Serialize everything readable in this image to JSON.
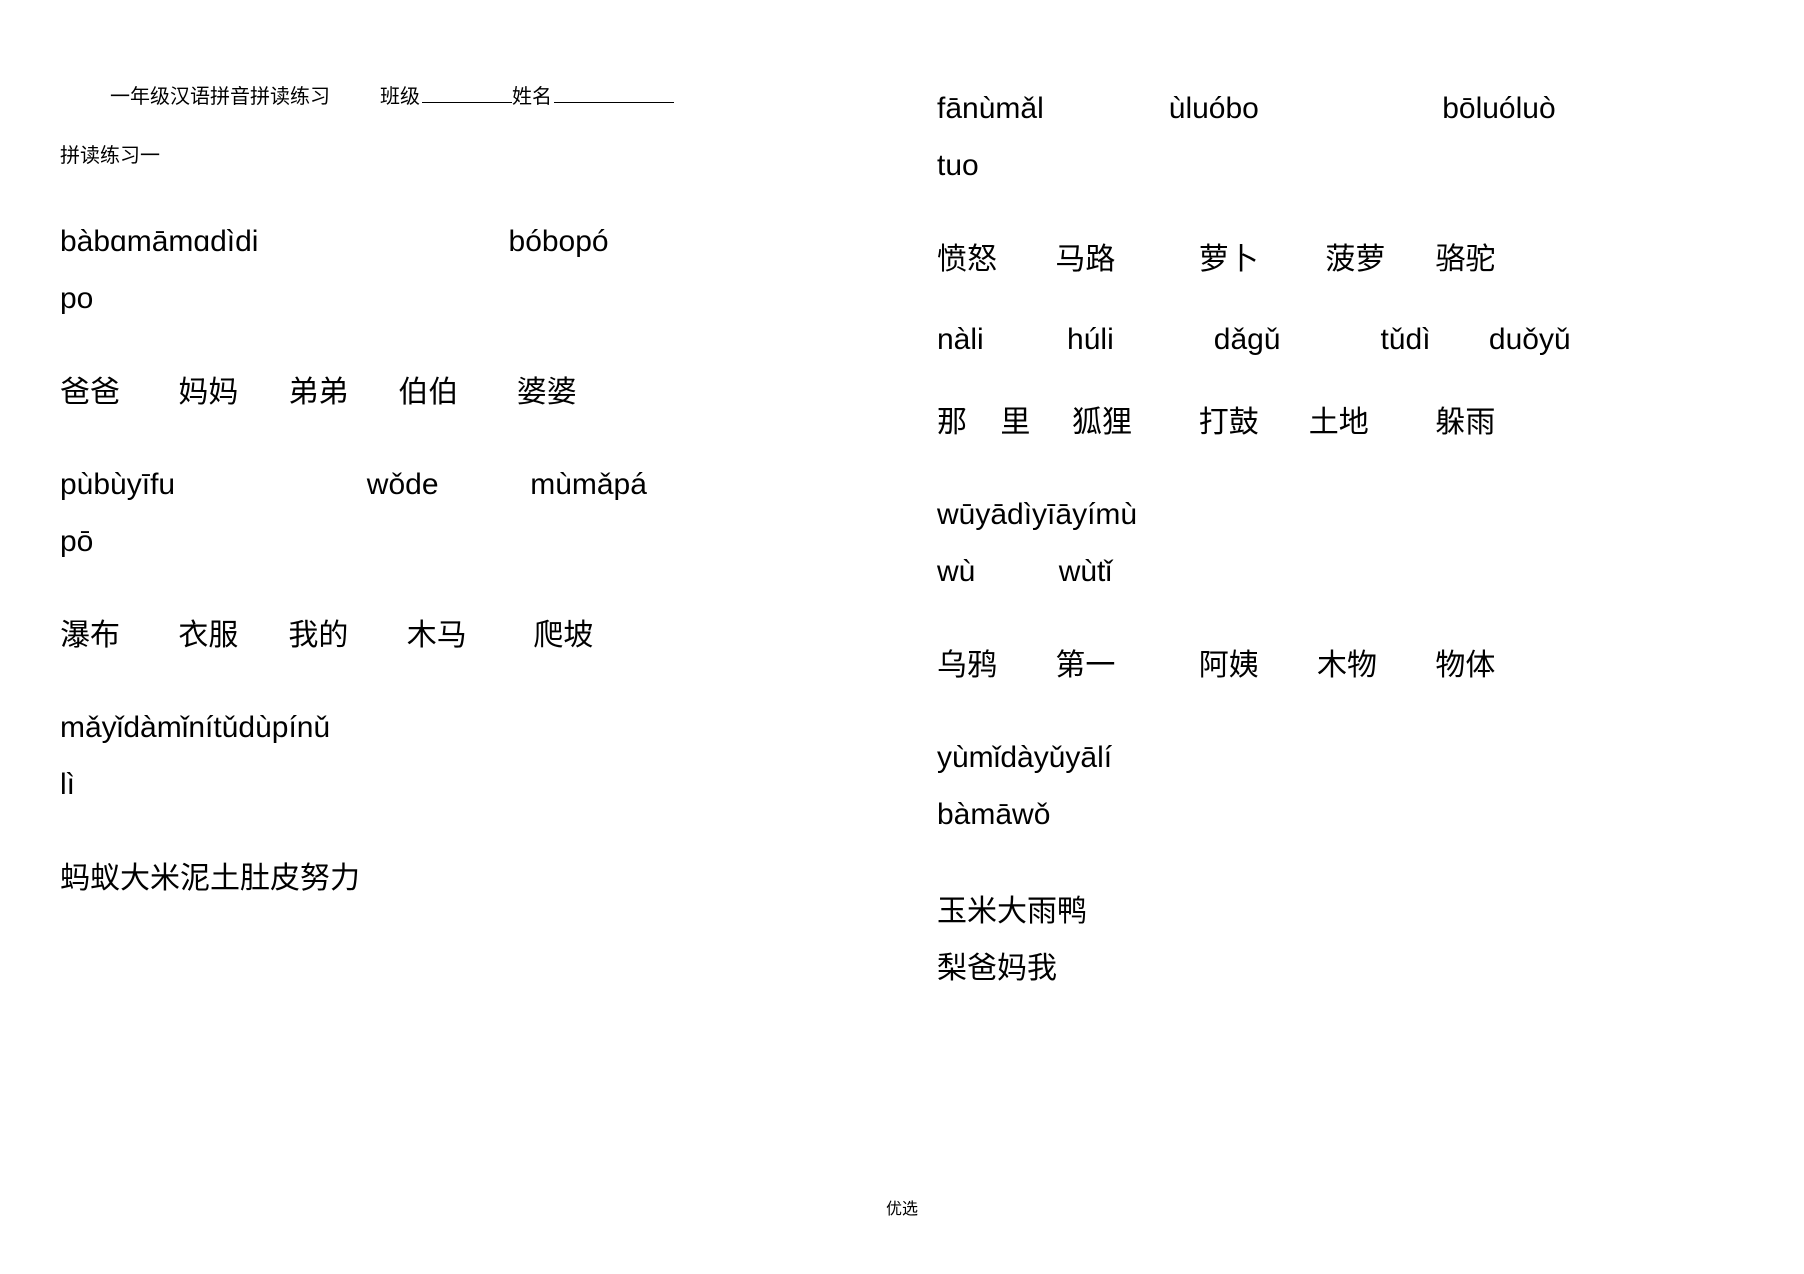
{
  "colors": {
    "background": "#ffffff",
    "text": "#000000",
    "underline": "#000000"
  },
  "typography": {
    "header_fontsize": 20,
    "body_fontsize": 30,
    "footer_fontsize": 16,
    "font_family": "Arial, Microsoft YaHei, sans-serif"
  },
  "header": {
    "title": "一年级汉语拼音拼读练习",
    "class_label": "班级",
    "name_label": "姓名"
  },
  "subheader": "拼读练习一",
  "left": {
    "block1": {
      "pinyin_line1": "bàbɑmāmɑdìdi                              bóbopó",
      "pinyin_line2": "po",
      "hanzi": "爸爸       妈妈      弟弟      伯伯       婆婆"
    },
    "block2": {
      "pinyin_line1": "pùbùyīfu                       wǒde           mùmǎpá",
      "pinyin_line2": "pō",
      "hanzi": "瀑布       衣服      我的       木马        爬坡"
    },
    "block3": {
      "pinyin_line1": "mǎyǐdàmǐnítǔdùpínǔ",
      "pinyin_line2": "lì",
      "hanzi": "蚂蚁大米泥土肚皮努力"
    }
  },
  "right": {
    "block1": {
      "pinyin_line1": "fānùmǎl               ùluóbo                      bōluóluò",
      "pinyin_line2": "tuo",
      "hanzi": "愤怒       马路          萝卜        菠萝      骆驼"
    },
    "block2": {
      "pinyin": "nàli          húli            dǎgǔ            tǔdì       duǒyǔ",
      "hanzi": "那    里     狐狸        打鼓      土地        躲雨"
    },
    "block3": {
      "pinyin_line1": "wūyādìyīāyímù",
      "pinyin_line2": "wù          wùtǐ",
      "hanzi": "乌鸦       第一          阿姨       木物       物体"
    },
    "block4": {
      "pinyin_line1": "yùmǐdàyǔyālí",
      "pinyin_line2": "bàmāwǒ",
      "hanzi_line1": "玉米大雨鸭",
      "hanzi_line2": "梨爸妈我"
    }
  },
  "footer": "优选"
}
